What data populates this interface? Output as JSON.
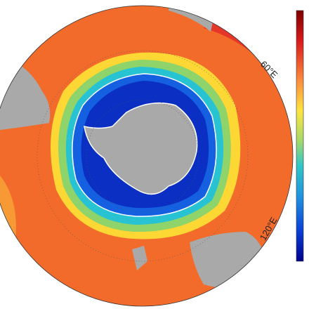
{
  "map": {
    "longitude_labels": [
      "60°E",
      "120°E"
    ]
  }
}
